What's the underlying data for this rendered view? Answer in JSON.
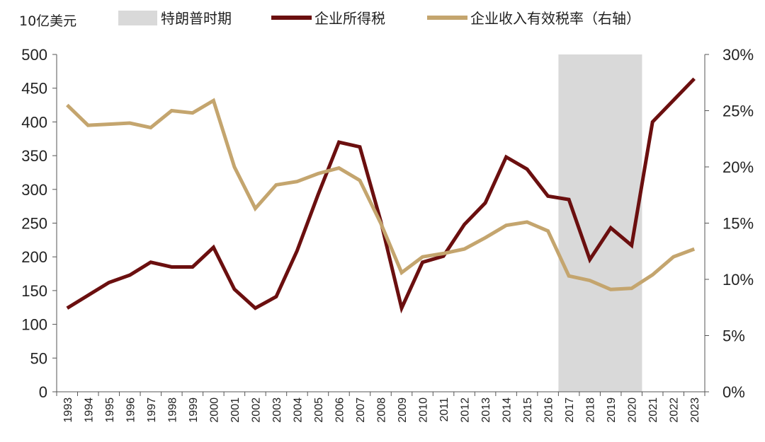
{
  "chart_data": {
    "type": "line",
    "y_unit_label": "10亿美元",
    "x": [
      1993,
      1994,
      1995,
      1996,
      1997,
      1998,
      1999,
      2000,
      2001,
      2002,
      2003,
      2004,
      2005,
      2006,
      2007,
      2008,
      2009,
      2010,
      2011,
      2012,
      2013,
      2014,
      2015,
      2016,
      2017,
      2018,
      2019,
      2020,
      2021,
      2022,
      2023
    ],
    "x_tick_labels": [
      "1993",
      "1994",
      "1995",
      "1996",
      "1997",
      "1998",
      "1999",
      "2000",
      "2001",
      "2002",
      "2003",
      "2004",
      "2005",
      "2006",
      "2007",
      "2008",
      "2009",
      "2010",
      "2011",
      "2012",
      "2013",
      "2014",
      "2015",
      "2016",
      "2017",
      "2018",
      "2019",
      "2020",
      "2021",
      "2022",
      "2023"
    ],
    "ylim_left": [
      0,
      500
    ],
    "y_ticks_left": [
      "0",
      "50",
      "100",
      "150",
      "200",
      "250",
      "300",
      "350",
      "400",
      "450",
      "500"
    ],
    "ylim_right": [
      0,
      0.3
    ],
    "y_ticks_right": [
      "0%",
      "5%",
      "10%",
      "15%",
      "20%",
      "25%",
      "30%"
    ],
    "shaded_period": {
      "label": "特朗普时期",
      "start": 2017,
      "end": 2020,
      "color": "#d9d9d9"
    },
    "series": [
      {
        "name": "企业所得税",
        "axis": "left",
        "color": "#6b0f0f",
        "values": [
          124,
          143,
          162,
          173,
          192,
          185,
          185,
          214,
          152,
          124,
          141,
          209,
          292,
          370,
          363,
          253,
          124,
          192,
          201,
          248,
          280,
          348,
          330,
          290,
          285,
          196,
          243,
          217,
          400,
          432,
          464
        ]
      },
      {
        "name": "企业收入有效税率（右轴）",
        "axis": "right",
        "color": "#c4a56e",
        "values": [
          0.255,
          0.237,
          0.238,
          0.239,
          0.235,
          0.25,
          0.248,
          0.259,
          0.2,
          0.163,
          0.184,
          0.187,
          0.194,
          0.199,
          0.188,
          0.15,
          0.106,
          0.12,
          0.123,
          0.127,
          0.137,
          0.148,
          0.151,
          0.143,
          0.103,
          0.099,
          0.091,
          0.092,
          0.104,
          0.12,
          0.127
        ]
      }
    ],
    "grid": false,
    "legend_position": "top"
  }
}
